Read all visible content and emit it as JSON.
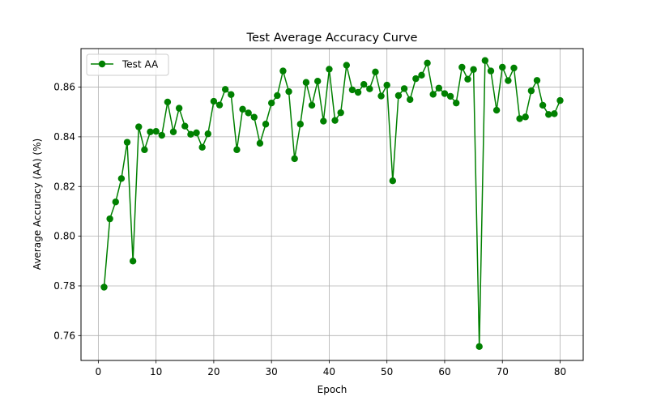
{
  "chart_data": {
    "type": "line",
    "title": "Test Average Accuracy Curve",
    "xlabel": "Epoch",
    "ylabel": "Average Accuracy (AA) (%)",
    "xlim": [
      -3,
      84
    ],
    "ylim": [
      0.75,
      0.8755
    ],
    "xticks": [
      0,
      10,
      20,
      30,
      40,
      50,
      60,
      70,
      80
    ],
    "yticks": [
      0.76,
      0.78,
      0.8,
      0.82,
      0.84,
      0.86
    ],
    "xtick_labels": [
      "0",
      "10",
      "20",
      "30",
      "40",
      "50",
      "60",
      "70",
      "80"
    ],
    "ytick_labels": [
      "0.76",
      "0.78",
      "0.80",
      "0.82",
      "0.84",
      "0.86"
    ],
    "grid": true,
    "legend": {
      "position": "top-left"
    },
    "series": [
      {
        "name": "Test AA",
        "color": "#008000",
        "marker": "circle",
        "x": [
          1,
          2,
          3,
          4,
          5,
          6,
          7,
          8,
          9,
          10,
          11,
          12,
          13,
          14,
          15,
          16,
          17,
          18,
          19,
          20,
          21,
          22,
          23,
          24,
          25,
          26,
          27,
          28,
          29,
          30,
          31,
          32,
          33,
          34,
          35,
          36,
          37,
          38,
          39,
          40,
          41,
          42,
          43,
          44,
          45,
          46,
          47,
          48,
          49,
          50,
          51,
          52,
          53,
          54,
          55,
          56,
          57,
          58,
          59,
          60,
          61,
          62,
          63,
          64,
          65,
          66,
          67,
          68,
          69,
          70,
          71,
          72,
          73,
          74,
          75,
          76,
          77,
          78,
          79,
          80
        ],
        "y": [
          0.7795,
          0.807,
          0.8138,
          0.8232,
          0.8378,
          0.79,
          0.844,
          0.8348,
          0.842,
          0.8422,
          0.8406,
          0.854,
          0.842,
          0.8515,
          0.8443,
          0.841,
          0.8416,
          0.8358,
          0.8412,
          0.8543,
          0.8528,
          0.8591,
          0.857,
          0.8348,
          0.8511,
          0.8496,
          0.8479,
          0.8374,
          0.8451,
          0.8536,
          0.8566,
          0.8665,
          0.8582,
          0.8312,
          0.8451,
          0.8619,
          0.8527,
          0.8624,
          0.8463,
          0.8672,
          0.8466,
          0.8497,
          0.8688,
          0.8589,
          0.8579,
          0.8611,
          0.8593,
          0.8661,
          0.8564,
          0.8608,
          0.8223,
          0.8566,
          0.8594,
          0.855,
          0.8634,
          0.8648,
          0.8697,
          0.8571,
          0.8596,
          0.8574,
          0.8563,
          0.8536,
          0.868,
          0.8632,
          0.8671,
          0.7556,
          0.8707,
          0.8665,
          0.8507,
          0.868,
          0.8626,
          0.8677,
          0.8473,
          0.848,
          0.8585,
          0.8627,
          0.8527,
          0.849,
          0.8493,
          0.8546
        ]
      }
    ]
  }
}
